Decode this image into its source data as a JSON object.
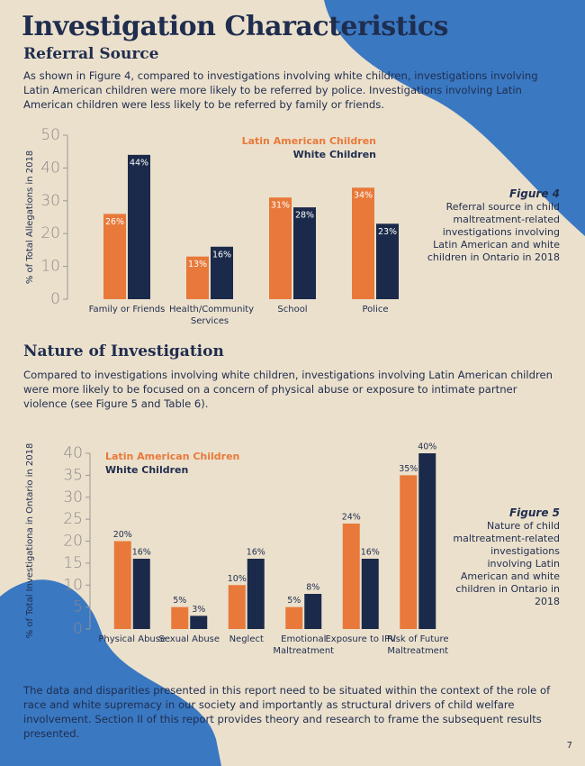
{
  "title": "Investigation Characteristics",
  "section1": {
    "heading": "Referral Source",
    "paragraph": "As shown in Figure 4, compared to investigations involving white children, investigations involving Latin American children were more likely to be referred by police. Investigations involving Latin American children were less likely to be referred by family or friends."
  },
  "section2": {
    "heading": "Nature of Investigation",
    "paragraph": "Compared to investigations involving white children, investigations involving Latin American children were more likely to be focused on a concern of physical abuse or exposure to intimate partner violence (see Figure 5 and Table 6)."
  },
  "chart_data": [
    {
      "type": "bar",
      "y_label": "% of Total Allegations in 2018",
      "figure_label": "Figure 4",
      "caption": "Referral source in child maltreatment-related investigations involving Latin American and white children in Ontario in 2018",
      "categories": [
        "Family or Friends",
        "Health/Community Services",
        "School",
        "Police"
      ],
      "series": [
        {
          "name": "Latin American Children",
          "color": "#e8793a",
          "values": [
            26,
            13,
            31,
            34
          ],
          "value_labels": [
            "26%",
            "13%",
            "31%",
            "34%"
          ]
        },
        {
          "name": "White Children",
          "color": "#1b2a4a",
          "values": [
            44,
            16,
            28,
            23
          ],
          "value_labels": [
            "44%",
            "16%",
            "28%",
            "23%"
          ]
        }
      ],
      "ylim": [
        0,
        50
      ],
      "yticks": [
        0,
        10,
        20,
        30,
        40,
        50
      ]
    },
    {
      "type": "bar",
      "y_label": "% of Total Investigationa in Ontario in 2018",
      "figure_label": "Figure 5",
      "caption": "Nature of child maltreatment-related investigations involving Latin American and white children in Ontario in 2018",
      "categories": [
        "Physical Abuse",
        "Sexual Abuse",
        "Neglect",
        "Emotional Maltreatment",
        "Exposure to IPV",
        "Risk of Future Maltreatment"
      ],
      "series": [
        {
          "name": "Latin American Children",
          "color": "#e8793a",
          "values": [
            20,
            5,
            10,
            5,
            24,
            35
          ],
          "value_labels": [
            "20%",
            "5%",
            "10%",
            "5%",
            "24%",
            "35%"
          ]
        },
        {
          "name": "White Children",
          "color": "#1b2a4a",
          "values": [
            16,
            3,
            16,
            8,
            16,
            40
          ],
          "value_labels": [
            "16%",
            "3%",
            "16%",
            "8%",
            "16%",
            "40%"
          ]
        }
      ],
      "ylim": [
        0,
        40
      ],
      "yticks": [
        0,
        5,
        10,
        15,
        20,
        25,
        30,
        35,
        40
      ]
    }
  ],
  "closing": "The data and disparities presented in this report need to be situated within the context of the role of race and white supremacy in our society and importantly as structural drivers of child welfare involvement. Section II of this report provides theory and research to frame the subsequent results presented.",
  "page_number": "7"
}
